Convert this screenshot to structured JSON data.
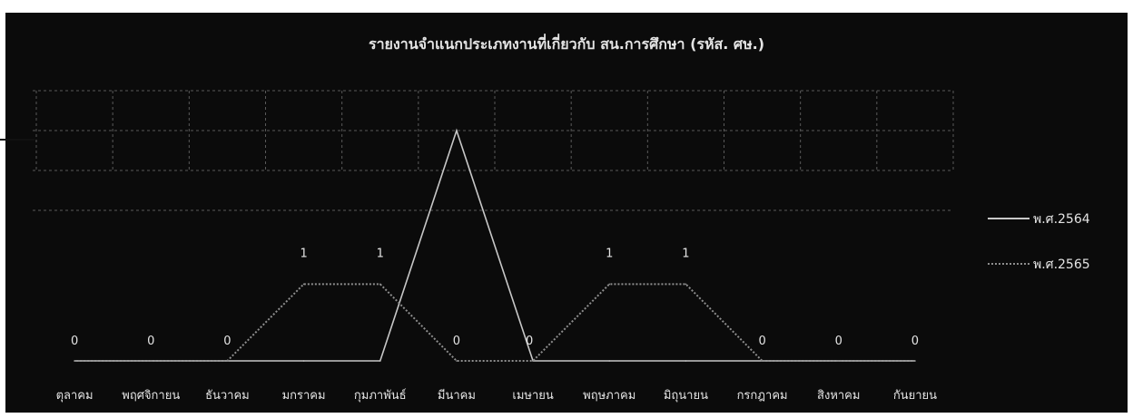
{
  "chart_data": {
    "type": "line",
    "title": "รายงานจำแนกประเภทงานที่เกี่ยวกับ สน.การศึกษา (รหัส. ศษ.)",
    "xlabel": "",
    "ylabel": "",
    "categories": [
      "ตุลาคม",
      "พฤศจิกายน",
      "ธันวาคม",
      "มกราคม",
      "กุมภาพันธ์",
      "มีนาคม",
      "เมษายน",
      "พฤษภาคม",
      "มิถุนายน",
      "กรกฎาคม",
      "สิงหาคม",
      "กันยายน"
    ],
    "series": [
      {
        "name": "พ.ศ.2564",
        "values": [
          0,
          0,
          0,
          0,
          0,
          3,
          0,
          0,
          0,
          0,
          0,
          0
        ]
      },
      {
        "name": "พ.ศ.2565",
        "values": [
          0,
          0,
          0,
          1,
          1,
          0,
          0,
          1,
          1,
          0,
          0,
          0
        ]
      }
    ],
    "data_labels": [
      {
        "category": "ตุลาคม",
        "text": "0"
      },
      {
        "category": "พฤศจิกายน",
        "text": "0"
      },
      {
        "category": "ธันวาคม",
        "text": "0"
      },
      {
        "category": "มกราคม",
        "text": "1"
      },
      {
        "category": "กุมภาพันธ์",
        "text": "1"
      },
      {
        "category": "มีนาคม",
        "text": "0"
      },
      {
        "category": "เมษายน",
        "text": "0"
      },
      {
        "category": "พฤษภาคม",
        "text": "1"
      },
      {
        "category": "มิถุนายน",
        "text": "1"
      },
      {
        "category": "กรกฎาคม",
        "text": "0"
      },
      {
        "category": "สิงหาคม",
        "text": "0"
      },
      {
        "category": "กันยายน",
        "text": "0"
      }
    ],
    "ylim": [
      0,
      3
    ],
    "grid": true,
    "legend": "right",
    "colors": {
      "background": "#0b0b0b",
      "series_2564": "#c8c8c8",
      "series_2565": "#8e8e8e",
      "text": "#e4e4e4",
      "grid": "#5a5a5a"
    }
  }
}
